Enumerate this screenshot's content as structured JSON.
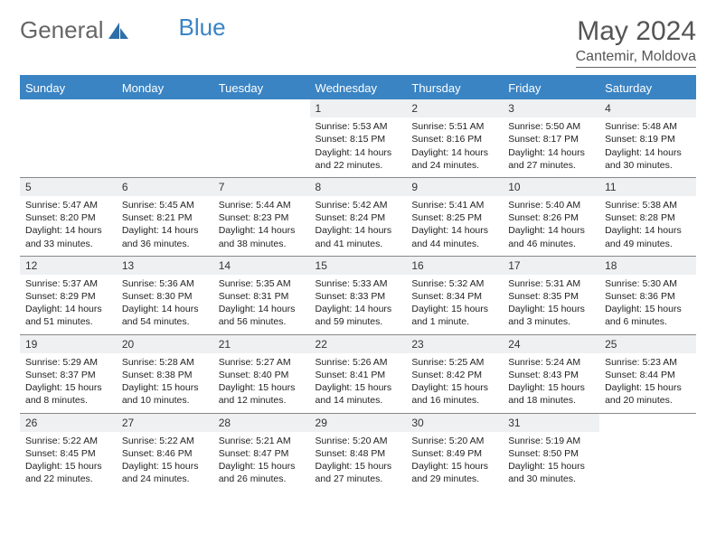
{
  "brand": {
    "part1": "General",
    "part2": "Blue"
  },
  "title": "May 2024",
  "location": "Cantemir, Moldova",
  "colors": {
    "header_bg": "#3a84c4",
    "header_text": "#ffffff",
    "daynum_bg": "#eef0f2",
    "text": "#222222",
    "rule": "#888888"
  },
  "weekdays": [
    "Sunday",
    "Monday",
    "Tuesday",
    "Wednesday",
    "Thursday",
    "Friday",
    "Saturday"
  ],
  "weeks": [
    [
      {
        "n": "",
        "sr": "",
        "ss": "",
        "dl": ""
      },
      {
        "n": "",
        "sr": "",
        "ss": "",
        "dl": ""
      },
      {
        "n": "",
        "sr": "",
        "ss": "",
        "dl": ""
      },
      {
        "n": "1",
        "sr": "Sunrise: 5:53 AM",
        "ss": "Sunset: 8:15 PM",
        "dl": "Daylight: 14 hours and 22 minutes."
      },
      {
        "n": "2",
        "sr": "Sunrise: 5:51 AM",
        "ss": "Sunset: 8:16 PM",
        "dl": "Daylight: 14 hours and 24 minutes."
      },
      {
        "n": "3",
        "sr": "Sunrise: 5:50 AM",
        "ss": "Sunset: 8:17 PM",
        "dl": "Daylight: 14 hours and 27 minutes."
      },
      {
        "n": "4",
        "sr": "Sunrise: 5:48 AM",
        "ss": "Sunset: 8:19 PM",
        "dl": "Daylight: 14 hours and 30 minutes."
      }
    ],
    [
      {
        "n": "5",
        "sr": "Sunrise: 5:47 AM",
        "ss": "Sunset: 8:20 PM",
        "dl": "Daylight: 14 hours and 33 minutes."
      },
      {
        "n": "6",
        "sr": "Sunrise: 5:45 AM",
        "ss": "Sunset: 8:21 PM",
        "dl": "Daylight: 14 hours and 36 minutes."
      },
      {
        "n": "7",
        "sr": "Sunrise: 5:44 AM",
        "ss": "Sunset: 8:23 PM",
        "dl": "Daylight: 14 hours and 38 minutes."
      },
      {
        "n": "8",
        "sr": "Sunrise: 5:42 AM",
        "ss": "Sunset: 8:24 PM",
        "dl": "Daylight: 14 hours and 41 minutes."
      },
      {
        "n": "9",
        "sr": "Sunrise: 5:41 AM",
        "ss": "Sunset: 8:25 PM",
        "dl": "Daylight: 14 hours and 44 minutes."
      },
      {
        "n": "10",
        "sr": "Sunrise: 5:40 AM",
        "ss": "Sunset: 8:26 PM",
        "dl": "Daylight: 14 hours and 46 minutes."
      },
      {
        "n": "11",
        "sr": "Sunrise: 5:38 AM",
        "ss": "Sunset: 8:28 PM",
        "dl": "Daylight: 14 hours and 49 minutes."
      }
    ],
    [
      {
        "n": "12",
        "sr": "Sunrise: 5:37 AM",
        "ss": "Sunset: 8:29 PM",
        "dl": "Daylight: 14 hours and 51 minutes."
      },
      {
        "n": "13",
        "sr": "Sunrise: 5:36 AM",
        "ss": "Sunset: 8:30 PM",
        "dl": "Daylight: 14 hours and 54 minutes."
      },
      {
        "n": "14",
        "sr": "Sunrise: 5:35 AM",
        "ss": "Sunset: 8:31 PM",
        "dl": "Daylight: 14 hours and 56 minutes."
      },
      {
        "n": "15",
        "sr": "Sunrise: 5:33 AM",
        "ss": "Sunset: 8:33 PM",
        "dl": "Daylight: 14 hours and 59 minutes."
      },
      {
        "n": "16",
        "sr": "Sunrise: 5:32 AM",
        "ss": "Sunset: 8:34 PM",
        "dl": "Daylight: 15 hours and 1 minute."
      },
      {
        "n": "17",
        "sr": "Sunrise: 5:31 AM",
        "ss": "Sunset: 8:35 PM",
        "dl": "Daylight: 15 hours and 3 minutes."
      },
      {
        "n": "18",
        "sr": "Sunrise: 5:30 AM",
        "ss": "Sunset: 8:36 PM",
        "dl": "Daylight: 15 hours and 6 minutes."
      }
    ],
    [
      {
        "n": "19",
        "sr": "Sunrise: 5:29 AM",
        "ss": "Sunset: 8:37 PM",
        "dl": "Daylight: 15 hours and 8 minutes."
      },
      {
        "n": "20",
        "sr": "Sunrise: 5:28 AM",
        "ss": "Sunset: 8:38 PM",
        "dl": "Daylight: 15 hours and 10 minutes."
      },
      {
        "n": "21",
        "sr": "Sunrise: 5:27 AM",
        "ss": "Sunset: 8:40 PM",
        "dl": "Daylight: 15 hours and 12 minutes."
      },
      {
        "n": "22",
        "sr": "Sunrise: 5:26 AM",
        "ss": "Sunset: 8:41 PM",
        "dl": "Daylight: 15 hours and 14 minutes."
      },
      {
        "n": "23",
        "sr": "Sunrise: 5:25 AM",
        "ss": "Sunset: 8:42 PM",
        "dl": "Daylight: 15 hours and 16 minutes."
      },
      {
        "n": "24",
        "sr": "Sunrise: 5:24 AM",
        "ss": "Sunset: 8:43 PM",
        "dl": "Daylight: 15 hours and 18 minutes."
      },
      {
        "n": "25",
        "sr": "Sunrise: 5:23 AM",
        "ss": "Sunset: 8:44 PM",
        "dl": "Daylight: 15 hours and 20 minutes."
      }
    ],
    [
      {
        "n": "26",
        "sr": "Sunrise: 5:22 AM",
        "ss": "Sunset: 8:45 PM",
        "dl": "Daylight: 15 hours and 22 minutes."
      },
      {
        "n": "27",
        "sr": "Sunrise: 5:22 AM",
        "ss": "Sunset: 8:46 PM",
        "dl": "Daylight: 15 hours and 24 minutes."
      },
      {
        "n": "28",
        "sr": "Sunrise: 5:21 AM",
        "ss": "Sunset: 8:47 PM",
        "dl": "Daylight: 15 hours and 26 minutes."
      },
      {
        "n": "29",
        "sr": "Sunrise: 5:20 AM",
        "ss": "Sunset: 8:48 PM",
        "dl": "Daylight: 15 hours and 27 minutes."
      },
      {
        "n": "30",
        "sr": "Sunrise: 5:20 AM",
        "ss": "Sunset: 8:49 PM",
        "dl": "Daylight: 15 hours and 29 minutes."
      },
      {
        "n": "31",
        "sr": "Sunrise: 5:19 AM",
        "ss": "Sunset: 8:50 PM",
        "dl": "Daylight: 15 hours and 30 minutes."
      },
      {
        "n": "",
        "sr": "",
        "ss": "",
        "dl": ""
      }
    ]
  ]
}
